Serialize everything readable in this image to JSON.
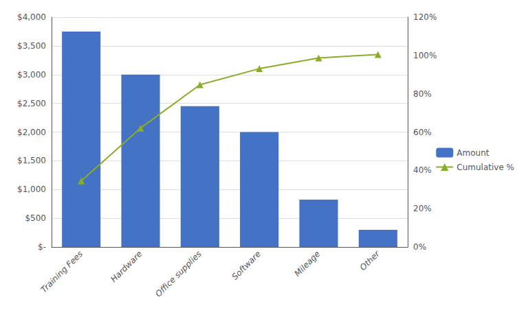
{
  "chart_data": {
    "type": "bar",
    "categories": [
      "Training Fees",
      "Hardware",
      "Office supplies",
      "Software",
      "Mileage",
      "Other"
    ],
    "series": [
      {
        "name": "Amount",
        "type": "bar",
        "color": "#4472C4",
        "values": [
          3750,
          3000,
          2450,
          2000,
          825,
          300
        ]
      },
      {
        "name": "Cumulative %",
        "type": "line",
        "axis": "y2",
        "color": "#8AAD27",
        "marker": "triangle",
        "values": [
          0.345,
          0.621,
          0.847,
          0.931,
          0.987,
          1.005
        ]
      }
    ],
    "ylim": [
      0,
      4000
    ],
    "yticks": [
      {
        "value": 0,
        "label": "$-"
      },
      {
        "value": 500,
        "label": "$500"
      },
      {
        "value": 1000,
        "label": "$1,000"
      },
      {
        "value": 1500,
        "label": "$1,500"
      },
      {
        "value": 2000,
        "label": "$2,000"
      },
      {
        "value": 2500,
        "label": "$2,500"
      },
      {
        "value": 3000,
        "label": "$3,000"
      },
      {
        "value": 3500,
        "label": "$3,500"
      },
      {
        "value": 4000,
        "label": "$4,000"
      }
    ],
    "y2lim": [
      0,
      1.2
    ],
    "y2ticks": [
      {
        "value": 0.0,
        "label": "0%"
      },
      {
        "value": 0.2,
        "label": "20%"
      },
      {
        "value": 0.4,
        "label": "40%"
      },
      {
        "value": 0.6,
        "label": "60%"
      },
      {
        "value": 0.8,
        "label": "80%"
      },
      {
        "value": 1.0,
        "label": "100%"
      },
      {
        "value": 1.2,
        "label": "120%"
      }
    ],
    "grid": true,
    "legend": "right"
  }
}
